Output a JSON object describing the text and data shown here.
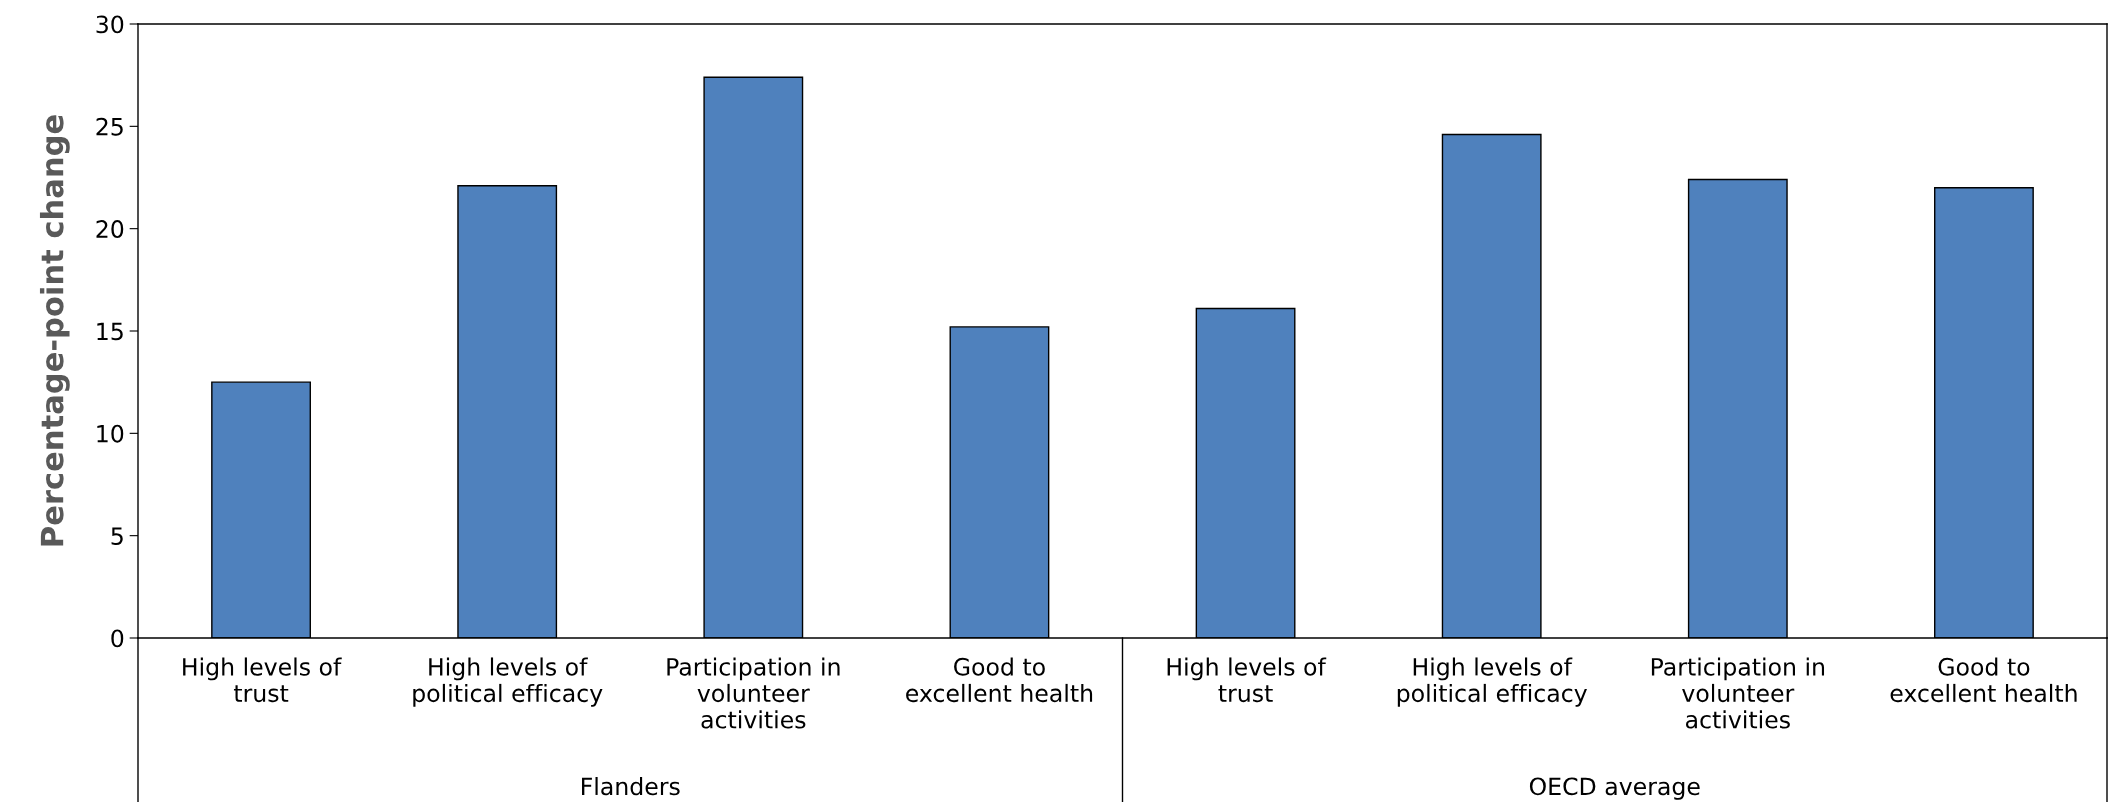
{
  "chart_data": {
    "type": "bar",
    "ylabel": "Percentage-point change",
    "categories": [
      "High levels of\ntrust",
      "High levels of\npolitical efficacy",
      "Participation in\nvolunteer\nactivities",
      "Good to\nexcellent health",
      "High levels of\ntrust",
      "High levels of\npolitical efficacy",
      "Participation in\nvolunteer\nactivities",
      "Good to\nexcellent health"
    ],
    "values": [
      12.5,
      22.1,
      27.4,
      15.2,
      16.1,
      24.6,
      22.4,
      22.0
    ],
    "color": "#4f81bd",
    "annotations": [
      "Flanders",
      "OECD average"
    ],
    "ylim": [
      0,
      30
    ],
    "yticks": [
      0,
      5,
      10,
      15,
      20,
      25,
      30
    ],
    "grid": false,
    "legend": false
  }
}
